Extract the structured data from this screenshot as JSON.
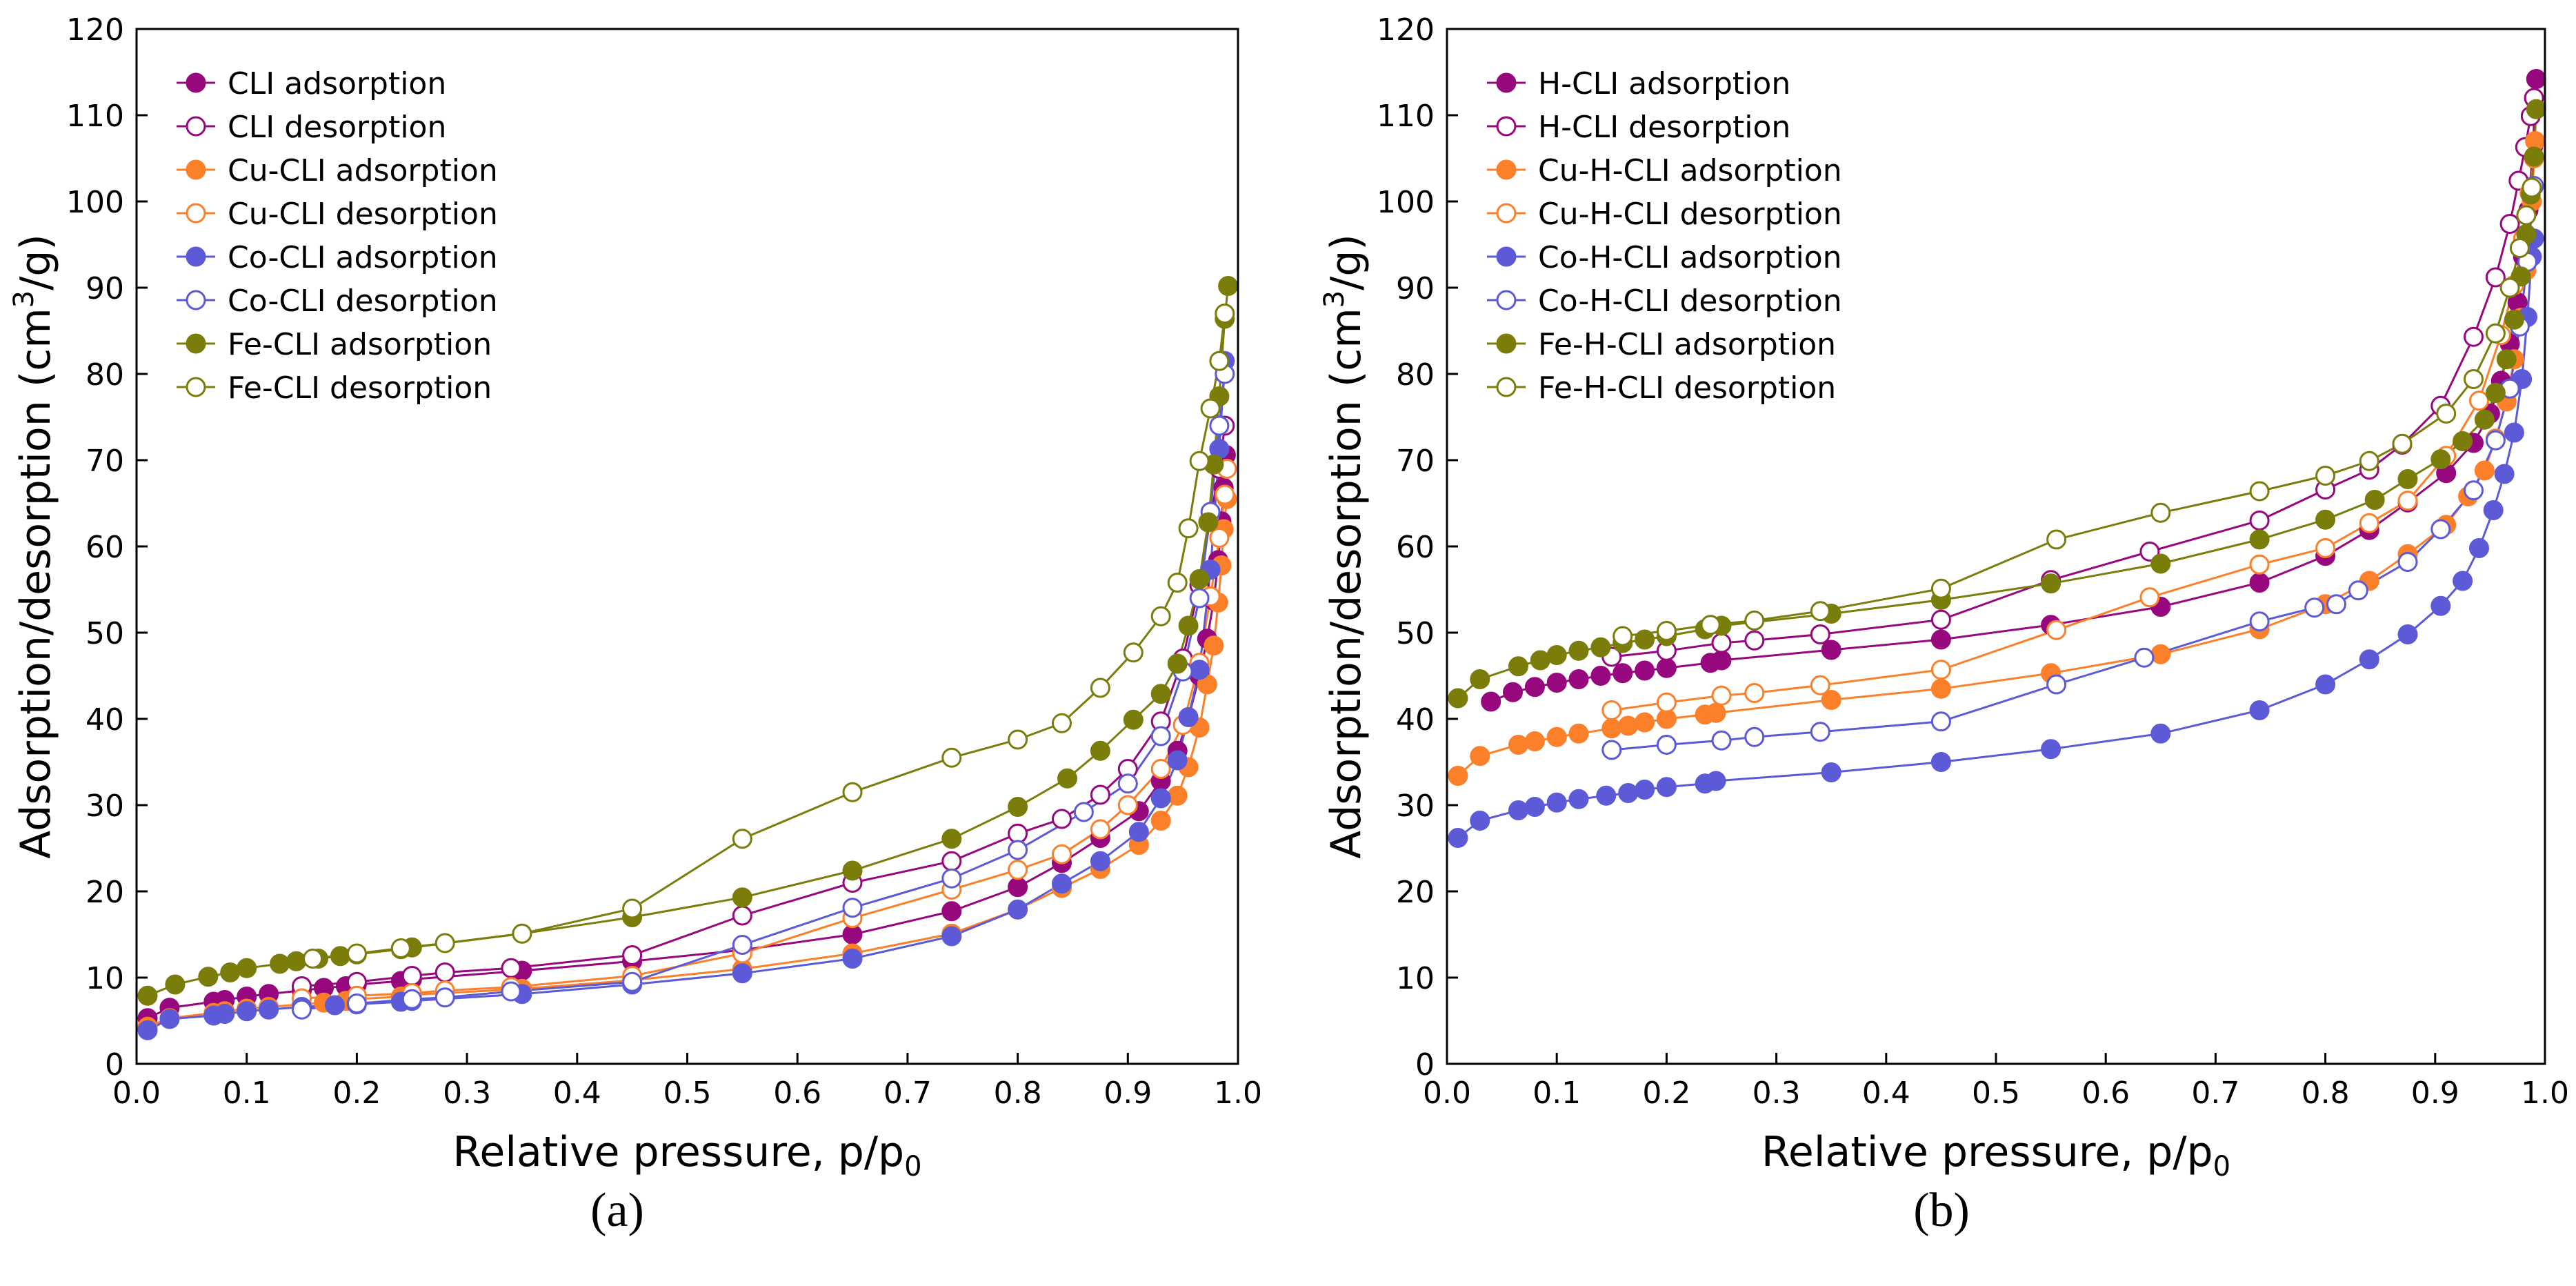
{
  "figure": {
    "panels": [
      "a",
      "b"
    ]
  },
  "colors": {
    "purple": "#97087e",
    "orange": "#fc7f2a",
    "blue": "#5c5ad6",
    "olive": "#7b7d0b",
    "axis": "#000000"
  },
  "chart_data": [
    {
      "type": "line",
      "panel_label": "(a)",
      "xlabel": "Relative pressure, p/p",
      "xlabel_sub": "0",
      "ylabel": "Adsorption/desorption (cm",
      "ylabel_sup": "3",
      "ylabel_end": "/g)",
      "xlim": [
        0.0,
        1.0
      ],
      "ylim": [
        0,
        120
      ],
      "xticks": [
        0.0,
        0.1,
        0.2,
        0.3,
        0.4,
        0.5,
        0.6,
        0.7,
        0.8,
        0.9,
        1.0
      ],
      "xtick_labels": [
        "0.0",
        "0.1",
        "0.2",
        "0.3",
        "0.4",
        "0.5",
        "0.6",
        "0.7",
        "0.8",
        "0.9",
        "1.0"
      ],
      "yticks": [
        0,
        10,
        20,
        30,
        40,
        50,
        60,
        70,
        80,
        90,
        100,
        110,
        120
      ],
      "ytick_labels": [
        "0",
        "10",
        "20",
        "30",
        "40",
        "50",
        "60",
        "70",
        "80",
        "90",
        "100",
        "110",
        "120"
      ],
      "grid": false,
      "legend_position": "top-left",
      "series": [
        {
          "name": "CLI adsorption",
          "color": "#97087e",
          "filled": true,
          "x": [
            0.01,
            0.03,
            0.07,
            0.08,
            0.1,
            0.12,
            0.15,
            0.17,
            0.19,
            0.2,
            0.24,
            0.25,
            0.35,
            0.45,
            0.55,
            0.65,
            0.74,
            0.8,
            0.84,
            0.875,
            0.91,
            0.93,
            0.945,
            0.955,
            0.965,
            0.972,
            0.978,
            0.982,
            0.985,
            0.987,
            0.989
          ],
          "y": [
            5.3,
            6.5,
            7.2,
            7.4,
            7.8,
            8.1,
            8.5,
            8.8,
            9.0,
            9.2,
            9.6,
            9.8,
            10.8,
            11.9,
            13.2,
            15.0,
            17.7,
            20.5,
            23.3,
            26.2,
            29.3,
            32.8,
            36.3,
            40.1,
            45.0,
            49.3,
            53.7,
            58.4,
            62.9,
            66.8,
            70.6
          ]
        },
        {
          "name": "CLI desorption",
          "color": "#97087e",
          "filled": false,
          "x": [
            0.15,
            0.2,
            0.25,
            0.28,
            0.34,
            0.45,
            0.55,
            0.65,
            0.74,
            0.8,
            0.84,
            0.875,
            0.9,
            0.93,
            0.95,
            0.965,
            0.975,
            0.983,
            0.988
          ],
          "y": [
            9.0,
            9.5,
            10.2,
            10.6,
            11.1,
            12.6,
            17.2,
            21.0,
            23.5,
            26.7,
            28.4,
            31.2,
            34.2,
            39.7,
            47.0,
            55.5,
            63.3,
            69.0,
            74.0
          ]
        },
        {
          "name": "Cu-CLI adsorption",
          "color": "#fc7f2a",
          "filled": true,
          "x": [
            0.01,
            0.03,
            0.07,
            0.08,
            0.1,
            0.12,
            0.15,
            0.17,
            0.19,
            0.2,
            0.24,
            0.25,
            0.35,
            0.45,
            0.55,
            0.65,
            0.74,
            0.8,
            0.84,
            0.875,
            0.91,
            0.93,
            0.945,
            0.955,
            0.965,
            0.972,
            0.978,
            0.982,
            0.985,
            0.987,
            0.99
          ],
          "y": [
            4.3,
            5.3,
            5.9,
            6.1,
            6.4,
            6.6,
            6.9,
            7.1,
            7.3,
            7.5,
            7.8,
            8.0,
            8.7,
            9.7,
            11.0,
            12.8,
            15.1,
            17.9,
            20.4,
            22.6,
            25.4,
            28.2,
            31.1,
            34.4,
            39.0,
            44.0,
            48.5,
            53.5,
            57.8,
            62.0,
            65.5
          ]
        },
        {
          "name": "Cu-CLI desorption",
          "color": "#fc7f2a",
          "filled": false,
          "x": [
            0.15,
            0.2,
            0.25,
            0.28,
            0.34,
            0.45,
            0.55,
            0.65,
            0.74,
            0.8,
            0.84,
            0.875,
            0.9,
            0.93,
            0.95,
            0.965,
            0.975,
            0.983,
            0.988,
            0.99
          ],
          "y": [
            7.6,
            7.9,
            8.2,
            8.5,
            8.9,
            10.2,
            12.8,
            16.9,
            20.2,
            22.5,
            24.3,
            27.2,
            30.0,
            34.2,
            39.3,
            46.5,
            54.2,
            61.0,
            66.0,
            69.0
          ]
        },
        {
          "name": "Co-CLI adsorption",
          "color": "#5c5ad6",
          "filled": true,
          "x": [
            0.01,
            0.03,
            0.07,
            0.08,
            0.1,
            0.12,
            0.15,
            0.18,
            0.2,
            0.24,
            0.25,
            0.35,
            0.45,
            0.55,
            0.65,
            0.74,
            0.8,
            0.84,
            0.875,
            0.91,
            0.93,
            0.945,
            0.955,
            0.965,
            0.975,
            0.983,
            0.988
          ],
          "y": [
            3.9,
            5.2,
            5.6,
            5.8,
            6.1,
            6.3,
            6.6,
            6.8,
            6.9,
            7.2,
            7.3,
            8.1,
            9.2,
            10.5,
            12.2,
            14.8,
            17.9,
            20.9,
            23.5,
            26.9,
            30.8,
            35.2,
            40.2,
            45.7,
            57.3,
            71.3,
            81.5
          ]
        },
        {
          "name": "Co-CLI desorption",
          "color": "#5c5ad6",
          "filled": false,
          "x": [
            0.15,
            0.2,
            0.25,
            0.28,
            0.34,
            0.45,
            0.55,
            0.65,
            0.74,
            0.8,
            0.86,
            0.9,
            0.93,
            0.95,
            0.965,
            0.975,
            0.983,
            0.988
          ],
          "y": [
            6.3,
            7.0,
            7.5,
            7.7,
            8.4,
            9.5,
            13.8,
            18.1,
            21.5,
            24.8,
            29.2,
            32.5,
            38.0,
            45.5,
            54.0,
            64.0,
            74.0,
            80.0
          ]
        },
        {
          "name": "Fe-CLI adsorption",
          "color": "#7b7d0b",
          "filled": true,
          "x": [
            0.01,
            0.035,
            0.065,
            0.085,
            0.1,
            0.13,
            0.145,
            0.165,
            0.185,
            0.2,
            0.24,
            0.25,
            0.35,
            0.45,
            0.55,
            0.65,
            0.74,
            0.8,
            0.845,
            0.875,
            0.905,
            0.93,
            0.945,
            0.955,
            0.965,
            0.973,
            0.978,
            0.983,
            0.988,
            0.991
          ],
          "y": [
            7.9,
            9.2,
            10.1,
            10.6,
            11.1,
            11.6,
            11.9,
            12.2,
            12.5,
            12.7,
            13.3,
            13.5,
            15.1,
            17.0,
            19.3,
            22.4,
            26.1,
            29.8,
            33.1,
            36.3,
            39.9,
            42.9,
            46.4,
            50.8,
            56.2,
            62.8,
            69.5,
            77.4,
            86.4,
            90.2
          ]
        },
        {
          "name": "Fe-CLI desorption",
          "color": "#7b7d0b",
          "filled": false,
          "x": [
            0.16,
            0.2,
            0.24,
            0.28,
            0.35,
            0.45,
            0.55,
            0.65,
            0.74,
            0.8,
            0.84,
            0.875,
            0.905,
            0.93,
            0.945,
            0.955,
            0.965,
            0.975,
            0.983,
            0.988
          ],
          "y": [
            12.2,
            12.8,
            13.4,
            14.0,
            15.1,
            18.0,
            26.1,
            31.5,
            35.5,
            37.6,
            39.5,
            43.6,
            47.7,
            51.9,
            55.8,
            62.1,
            69.9,
            76.0,
            81.5,
            87.0
          ]
        }
      ]
    },
    {
      "type": "line",
      "panel_label": "(b)",
      "xlabel": "Relative pressure, p/p",
      "xlabel_sub": "0",
      "ylabel": "Adsorption/desorption (cm",
      "ylabel_sup": "3",
      "ylabel_end": "/g)",
      "xlim": [
        0.0,
        1.0
      ],
      "ylim": [
        0,
        120
      ],
      "xticks": [
        0.0,
        0.1,
        0.2,
        0.3,
        0.4,
        0.5,
        0.6,
        0.7,
        0.8,
        0.9,
        1.0
      ],
      "xtick_labels": [
        "0.0",
        "0.1",
        "0.2",
        "0.3",
        "0.4",
        "0.5",
        "0.6",
        "0.7",
        "0.8",
        "0.9",
        "1.0"
      ],
      "yticks": [
        0,
        10,
        20,
        30,
        40,
        50,
        60,
        70,
        80,
        90,
        100,
        110,
        120
      ],
      "ytick_labels": [
        "0",
        "10",
        "20",
        "30",
        "40",
        "50",
        "60",
        "70",
        "80",
        "90",
        "100",
        "110",
        "120"
      ],
      "grid": false,
      "legend_position": "top-left",
      "series": [
        {
          "name": "H-CLI adsorption",
          "color": "#97087e",
          "filled": true,
          "x": [
            0.04,
            0.06,
            0.08,
            0.1,
            0.12,
            0.14,
            0.16,
            0.18,
            0.2,
            0.24,
            0.25,
            0.35,
            0.45,
            0.55,
            0.65,
            0.74,
            0.8,
            0.84,
            0.875,
            0.91,
            0.935,
            0.95,
            0.96,
            0.968,
            0.975,
            0.98,
            0.985,
            0.989,
            0.992
          ],
          "y": [
            42.0,
            43.1,
            43.7,
            44.2,
            44.6,
            45.0,
            45.3,
            45.6,
            45.9,
            46.5,
            46.8,
            48.0,
            49.2,
            50.9,
            53.0,
            55.8,
            58.9,
            61.9,
            65.1,
            68.5,
            72.0,
            75.4,
            79.2,
            83.5,
            88.3,
            93.6,
            99.0,
            106.3,
            114.2
          ]
        },
        {
          "name": "H-CLI desorption",
          "color": "#97087e",
          "filled": false,
          "x": [
            0.15,
            0.2,
            0.25,
            0.28,
            0.34,
            0.45,
            0.55,
            0.64,
            0.74,
            0.8,
            0.84,
            0.87,
            0.905,
            0.935,
            0.955,
            0.968,
            0.976,
            0.982,
            0.987,
            0.99
          ],
          "y": [
            47.2,
            47.9,
            48.8,
            49.1,
            49.8,
            51.5,
            56.1,
            59.4,
            63.0,
            66.6,
            68.9,
            71.8,
            76.3,
            84.3,
            91.2,
            97.4,
            102.4,
            106.3,
            109.9,
            112.0
          ]
        },
        {
          "name": "Cu-H-CLI adsorption",
          "color": "#fc7f2a",
          "filled": true,
          "x": [
            0.01,
            0.03,
            0.065,
            0.08,
            0.1,
            0.12,
            0.15,
            0.165,
            0.18,
            0.2,
            0.235,
            0.245,
            0.35,
            0.45,
            0.55,
            0.65,
            0.74,
            0.8,
            0.84,
            0.875,
            0.91,
            0.93,
            0.945,
            0.955,
            0.965,
            0.972,
            0.978,
            0.983,
            0.988,
            0.991
          ],
          "y": [
            33.4,
            35.7,
            37.0,
            37.4,
            37.9,
            38.3,
            38.9,
            39.2,
            39.6,
            40.0,
            40.5,
            40.7,
            42.2,
            43.5,
            45.3,
            47.5,
            50.4,
            53.3,
            56.0,
            59.1,
            62.5,
            65.8,
            68.8,
            72.5,
            76.8,
            81.7,
            86.5,
            92.0,
            100.0,
            107.0
          ]
        },
        {
          "name": "Cu-H-CLI desorption",
          "color": "#fc7f2a",
          "filled": false,
          "x": [
            0.15,
            0.2,
            0.25,
            0.28,
            0.34,
            0.45,
            0.555,
            0.64,
            0.74,
            0.8,
            0.84,
            0.875,
            0.91,
            0.94,
            0.96,
            0.972,
            0.98,
            0.986,
            0.99
          ],
          "y": [
            41.0,
            41.9,
            42.7,
            43.0,
            43.9,
            45.7,
            50.3,
            54.1,
            57.9,
            59.8,
            62.7,
            65.3,
            70.5,
            76.9,
            84.5,
            90.3,
            95.7,
            101.0,
            105.0
          ]
        },
        {
          "name": "Co-H-CLI adsorption",
          "color": "#5c5ad6",
          "filled": true,
          "x": [
            0.01,
            0.03,
            0.065,
            0.08,
            0.1,
            0.12,
            0.145,
            0.165,
            0.18,
            0.2,
            0.235,
            0.245,
            0.35,
            0.45,
            0.55,
            0.65,
            0.74,
            0.8,
            0.84,
            0.875,
            0.905,
            0.925,
            0.94,
            0.953,
            0.963,
            0.972,
            0.979,
            0.984,
            0.988,
            0.99
          ],
          "y": [
            26.2,
            28.2,
            29.4,
            29.8,
            30.3,
            30.7,
            31.1,
            31.4,
            31.8,
            32.1,
            32.5,
            32.8,
            33.8,
            35.0,
            36.5,
            38.3,
            41.0,
            44.0,
            46.9,
            49.8,
            53.1,
            56.0,
            59.8,
            64.2,
            68.4,
            73.2,
            79.4,
            86.6,
            93.6,
            95.7
          ]
        },
        {
          "name": "Co-H-CLI desorption",
          "color": "#5c5ad6",
          "filled": false,
          "x": [
            0.15,
            0.2,
            0.25,
            0.28,
            0.34,
            0.45,
            0.555,
            0.635,
            0.74,
            0.79,
            0.81,
            0.83,
            0.875,
            0.905,
            0.935,
            0.955,
            0.968,
            0.977,
            0.984,
            0.99
          ],
          "y": [
            36.4,
            37.0,
            37.5,
            37.9,
            38.5,
            39.7,
            44.0,
            47.1,
            51.3,
            52.9,
            53.3,
            54.9,
            58.2,
            62.0,
            66.5,
            72.3,
            78.3,
            85.5,
            93.0,
            101.8
          ]
        },
        {
          "name": "Fe-H-CLI adsorption",
          "color": "#7b7d0b",
          "filled": true,
          "x": [
            0.01,
            0.03,
            0.065,
            0.085,
            0.1,
            0.12,
            0.14,
            0.16,
            0.18,
            0.2,
            0.235,
            0.25,
            0.35,
            0.45,
            0.55,
            0.65,
            0.74,
            0.8,
            0.845,
            0.875,
            0.905,
            0.925,
            0.945,
            0.955,
            0.965,
            0.972,
            0.978,
            0.983,
            0.987,
            0.99,
            0.992
          ],
          "y": [
            42.4,
            44.6,
            46.1,
            46.8,
            47.4,
            47.9,
            48.3,
            48.8,
            49.2,
            49.6,
            50.4,
            50.8,
            52.2,
            53.8,
            55.7,
            58.0,
            60.8,
            63.1,
            65.4,
            67.8,
            70.1,
            72.2,
            74.7,
            77.8,
            81.7,
            86.3,
            91.3,
            96.2,
            100.8,
            105.2,
            110.7
          ]
        },
        {
          "name": "Fe-H-CLI desorption",
          "color": "#7b7d0b",
          "filled": false,
          "x": [
            0.16,
            0.2,
            0.24,
            0.28,
            0.34,
            0.45,
            0.555,
            0.65,
            0.74,
            0.8,
            0.84,
            0.87,
            0.91,
            0.935,
            0.955,
            0.968,
            0.977,
            0.983,
            0.988
          ],
          "y": [
            49.6,
            50.2,
            50.9,
            51.4,
            52.5,
            55.1,
            60.8,
            63.9,
            66.4,
            68.2,
            69.9,
            71.9,
            75.4,
            79.4,
            84.7,
            90.0,
            94.6,
            98.4,
            101.6
          ]
        }
      ]
    }
  ]
}
